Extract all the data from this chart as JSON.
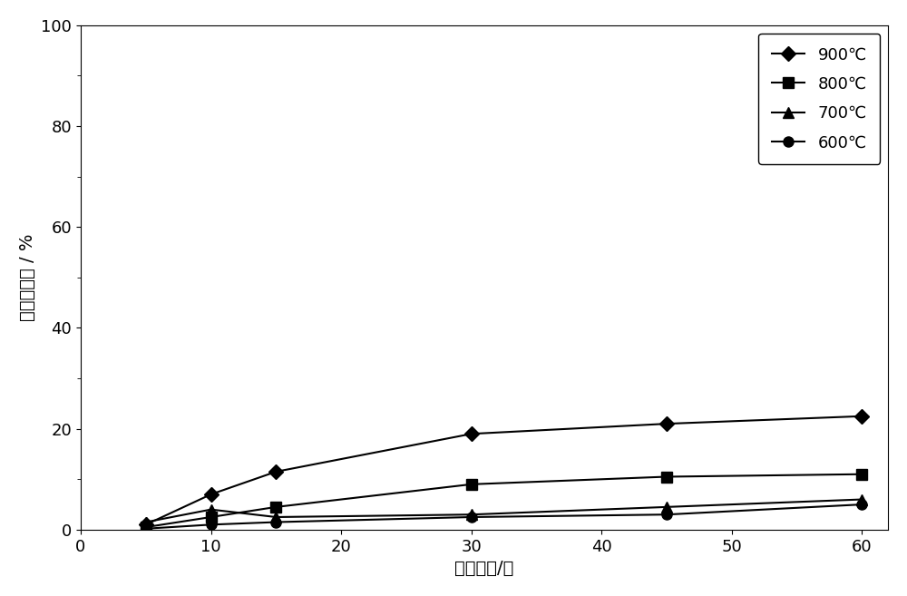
{
  "x_values": [
    5,
    10,
    15,
    30,
    45,
    60
  ],
  "series": [
    {
      "label": "900℃",
      "marker": "D",
      "color": "#000000",
      "values": [
        1.0,
        7.0,
        11.5,
        19.0,
        21.0,
        22.5
      ]
    },
    {
      "label": "800℃",
      "marker": "s",
      "color": "#000000",
      "values": [
        0.5,
        2.5,
        4.5,
        9.0,
        10.5,
        11.0
      ]
    },
    {
      "label": "700℃",
      "marker": "^",
      "color": "#000000",
      "values": [
        1.5,
        4.0,
        2.5,
        3.0,
        4.5,
        6.0
      ]
    },
    {
      "label": "600℃",
      "marker": "o",
      "color": "#000000",
      "values": [
        0.2,
        1.0,
        1.5,
        2.5,
        3.0,
        5.0
      ]
    }
  ],
  "xlabel": "反应时间/分",
  "ylabel": "反应转化率 / %",
  "xlim": [
    0,
    62
  ],
  "ylim": [
    0,
    100
  ],
  "xticks": [
    0,
    10,
    20,
    30,
    40,
    50,
    60
  ],
  "yticks": [
    0,
    20,
    40,
    60,
    80,
    100
  ],
  "background_color": "#ffffff",
  "grid": false,
  "axis_fontsize": 14,
  "tick_fontsize": 13,
  "legend_fontsize": 13,
  "linewidth": 1.5,
  "markersize": 8
}
